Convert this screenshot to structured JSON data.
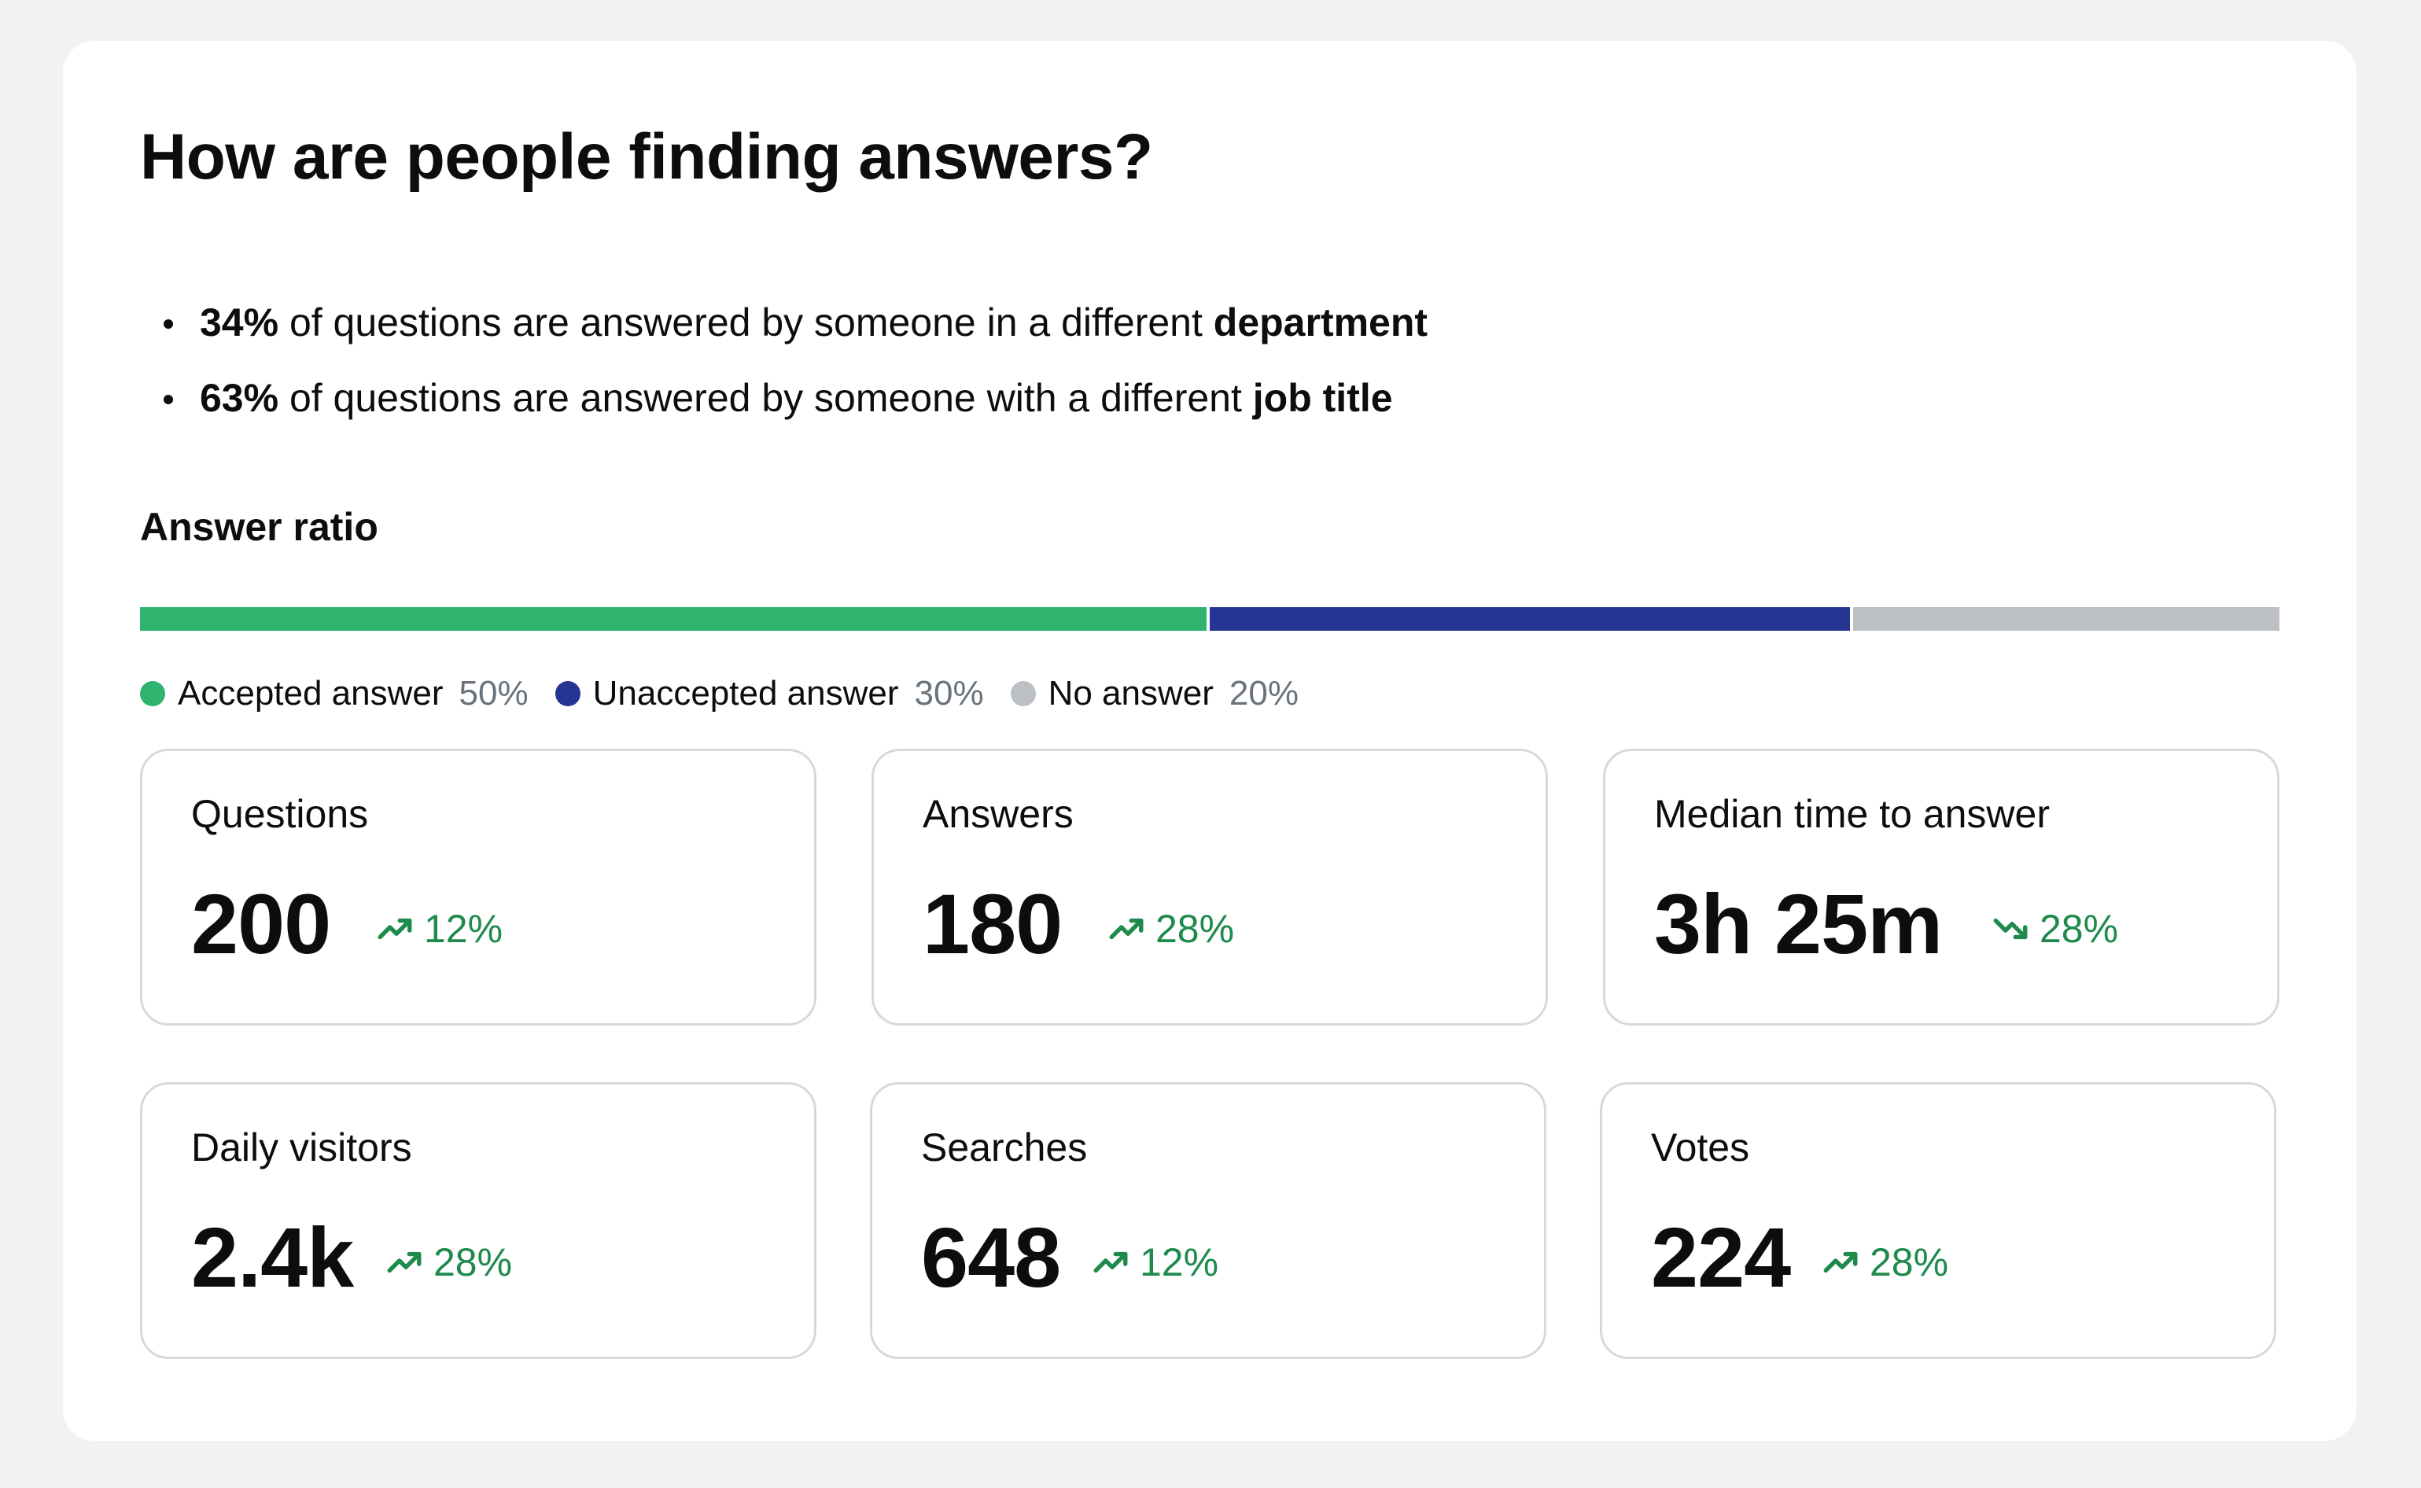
{
  "title": "How are people finding answers?",
  "bullets": [
    {
      "pct": "34%",
      "text": " of questions are answered by someone in a different ",
      "emph": "department"
    },
    {
      "pct": "63%",
      "text": " of questions are answered by someone with a different ",
      "emph": "job title"
    }
  ],
  "answer_ratio": {
    "label": "Answer ratio",
    "segments": [
      {
        "name": "Accepted answer",
        "pct_label": "50%",
        "fraction": 0.5,
        "color": "#2fb36f"
      },
      {
        "name": "Unaccepted answer",
        "pct_label": "30%",
        "fraction": 0.3,
        "color": "#263494"
      },
      {
        "name": "No answer",
        "pct_label": "20%",
        "fraction": 0.2,
        "color": "#bcbfc3"
      }
    ]
  },
  "trend_color": "#1e8a4c",
  "stats": [
    {
      "label": "Questions",
      "value": "200",
      "trend": "12%",
      "direction": "up",
      "icon": "trending-up-icon"
    },
    {
      "label": "Answers",
      "value": "180",
      "trend": "28%",
      "direction": "up",
      "icon": "trending-up-icon"
    },
    {
      "label": "Median time to answer",
      "value": "3h 25m",
      "trend": "28%",
      "direction": "down",
      "icon": "trending-down-icon"
    },
    {
      "label": "Daily visitors",
      "value": "2.4k",
      "trend": "28%",
      "direction": "up",
      "icon": "trending-up-icon"
    },
    {
      "label": "Searches",
      "value": "648",
      "trend": "12%",
      "direction": "up",
      "icon": "trending-up-icon"
    },
    {
      "label": "Votes",
      "value": "224",
      "trend": "28%",
      "direction": "up",
      "icon": "trending-up-icon"
    }
  ]
}
